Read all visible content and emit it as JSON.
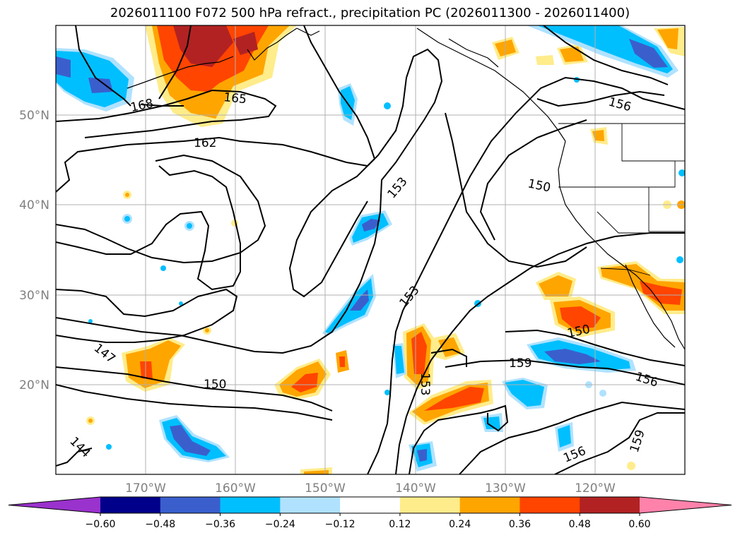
{
  "title": "2026011100 F072 500 hPa refract., precipitation PC (2026011300 - 2026011400)",
  "map": {
    "projection": "PlateCarree",
    "lon_range": [
      -180,
      -110
    ],
    "lat_range": [
      10,
      60
    ],
    "lon_ticks": [
      "170°W",
      "160°W",
      "150°W",
      "140°W",
      "130°W",
      "120°W"
    ],
    "lat_ticks": [
      "50°N",
      "40°N",
      "30°N",
      "20°N"
    ],
    "gridlines": true
  },
  "contour_labels": [
    "168",
    "165",
    "162",
    "156",
    "153",
    "150",
    "153",
    "150",
    "147",
    "150",
    "159",
    "156",
    "153",
    "144",
    "156",
    "159"
  ],
  "colorbar": {
    "orientation": "horizontal",
    "extend": "both",
    "tick_labels": [
      "−0.60",
      "−0.48",
      "−0.36",
      "−0.24",
      "−0.12",
      "0.12",
      "0.24",
      "0.36",
      "0.48",
      "0.60"
    ],
    "colors": [
      "#9a32cd",
      "#00008b",
      "#3a5fcd",
      "#00bfff",
      "#b0e2ff",
      "#ffffff",
      "#ffec8b",
      "#ffa500",
      "#ff4500",
      "#b22222",
      "#ff82ab"
    ]
  }
}
